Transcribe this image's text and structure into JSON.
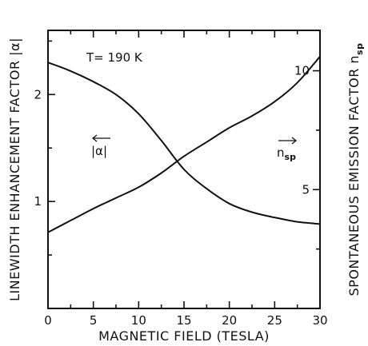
{
  "chart_data": {
    "type": "line",
    "title": "",
    "xlabel": "MAGNETIC FIELD (TESLA)",
    "ylabel_left": "LINEWIDTH ENHANCEMENT FACTOR |α|",
    "ylabel_right_main": "SPONTANEOUS EMISSION FACTOR n",
    "ylabel_right_sub": "sp",
    "xlim": [
      0,
      30
    ],
    "ylim_left": [
      0,
      2.6
    ],
    "ylim_right": [
      0,
      11.7
    ],
    "x_ticks": [
      0,
      5,
      10,
      15,
      20,
      25,
      30
    ],
    "x_tick_labels": [
      "0",
      "5",
      "10",
      "15",
      "20",
      "25",
      "30"
    ],
    "y_left_ticks": [
      1,
      2
    ],
    "y_left_tick_labels": [
      "1",
      "2"
    ],
    "y_right_ticks": [
      5,
      10
    ],
    "y_right_tick_labels": [
      "5",
      "10"
    ],
    "grid": false,
    "annotations": {
      "temperature": "T= 190 K",
      "alpha_label": "|α|",
      "nsp_label_main": "n",
      "nsp_label_sub": "sp"
    },
    "series": [
      {
        "name": "|α|",
        "axis": "left",
        "x": [
          0,
          2.5,
          5,
          7.5,
          10,
          12.5,
          15,
          17.5,
          20,
          22.5,
          25,
          27.5,
          30
        ],
        "values": [
          2.3,
          2.22,
          2.12,
          2.0,
          1.82,
          1.57,
          1.3,
          1.12,
          0.98,
          0.9,
          0.85,
          0.81,
          0.79
        ]
      },
      {
        "name": "n_sp",
        "axis": "right",
        "x": [
          0,
          2.5,
          5,
          7.5,
          10,
          12.5,
          15,
          17.5,
          20,
          22.5,
          25,
          27.5,
          30
        ],
        "values": [
          3.2,
          3.7,
          4.2,
          4.65,
          5.1,
          5.7,
          6.4,
          7.0,
          7.6,
          8.1,
          8.7,
          9.5,
          10.6
        ]
      }
    ]
  }
}
